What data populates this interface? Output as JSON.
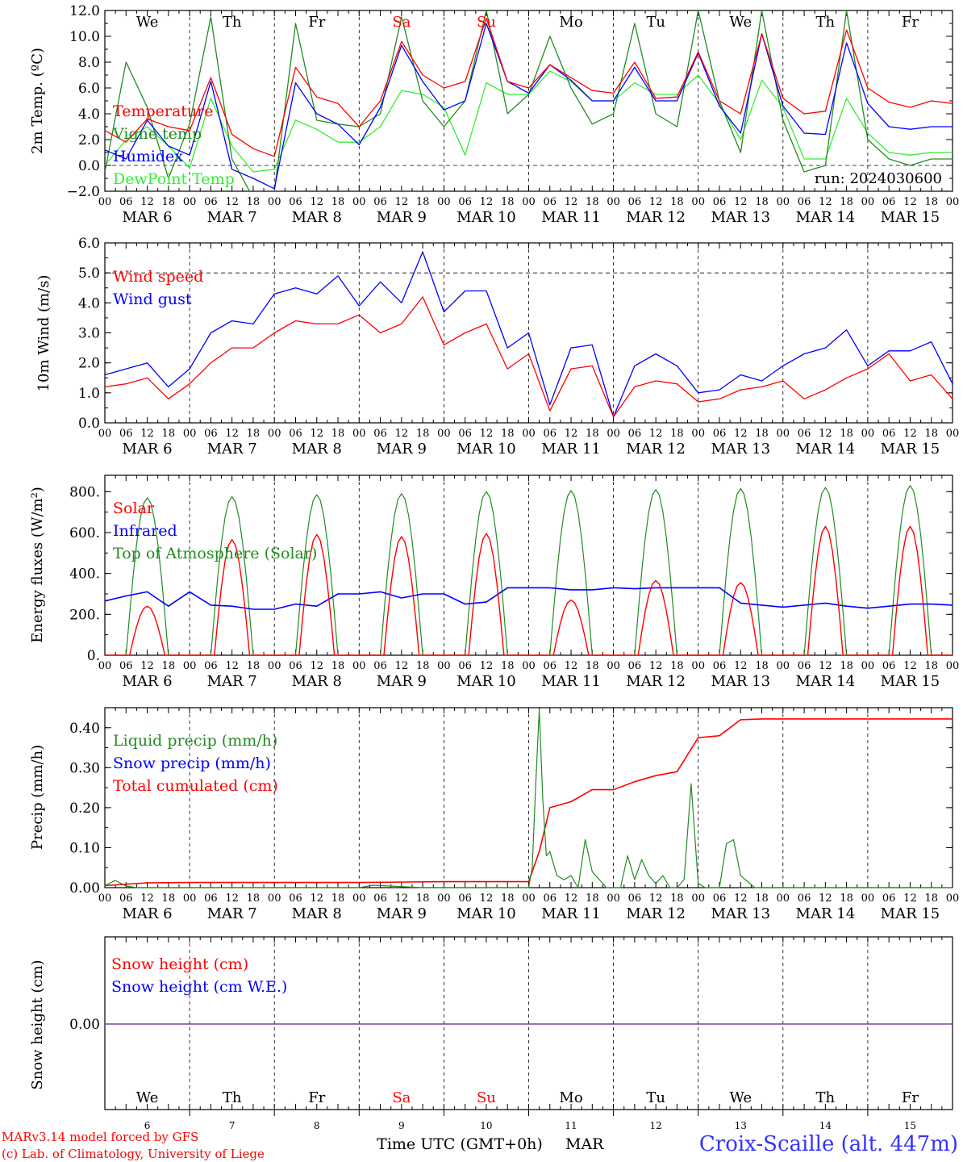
{
  "chart_data": [
    {
      "type": "line",
      "ylabel": "2m Temp. (ºC)",
      "ylim": [
        -2.0,
        12.0
      ],
      "yticks": [
        "−2.0",
        "0.0",
        "2.0",
        "4.0",
        "6.0",
        "8.0",
        "10.0",
        "12.0"
      ],
      "ytick_values": [
        -2,
        0,
        2,
        4,
        6,
        8,
        10,
        12
      ],
      "ref_line": 0,
      "day_labels": [
        "We",
        "Th",
        "Fr",
        "Sa",
        "Su",
        "Mo",
        "Tu",
        "We",
        "Th",
        "Fr"
      ],
      "run_label": "run: 2024030600",
      "x": [
        0,
        6,
        12,
        18,
        24,
        30,
        36,
        42,
        48,
        54,
        60,
        66,
        72,
        78,
        84,
        90,
        96,
        102,
        108,
        114,
        120,
        126,
        132,
        138,
        144,
        150,
        156,
        162,
        168,
        174,
        180,
        186,
        192,
        198,
        204,
        210,
        216,
        222,
        228,
        234,
        240
      ],
      "series": [
        {
          "name": "Temperature",
          "color": "#ff0000",
          "values": [
            2.7,
            1.8,
            3.6,
            3.0,
            2.7,
            6.8,
            2.4,
            1.3,
            0.7,
            7.6,
            5.3,
            4.8,
            3.0,
            5.0,
            9.6,
            7.0,
            6.0,
            6.5,
            11.4,
            6.5,
            6.0,
            7.8,
            6.8,
            5.8,
            5.6,
            8.0,
            5.2,
            5.3,
            8.8,
            5.0,
            4.0,
            10.2,
            5.2,
            4.0,
            4.2,
            10.5,
            6.0,
            4.9,
            4.5,
            5.0,
            4.8
          ]
        },
        {
          "name": "Vigne temp",
          "color": "#228b22",
          "values": [
            -0.5,
            8.0,
            4.5,
            -1.0,
            3.2,
            11.5,
            0.5,
            -2.5,
            -2.0,
            11.0,
            3.5,
            3.2,
            3.0,
            4.0,
            11.5,
            5.0,
            3.0,
            5.0,
            12.0,
            4.0,
            5.5,
            10.0,
            6.0,
            3.2,
            4.0,
            11.0,
            4.0,
            3.0,
            12.0,
            5.0,
            1.0,
            12.0,
            3.5,
            -0.5,
            0.0,
            12.0,
            2.0,
            0.5,
            0.0,
            0.5,
            0.5
          ]
        },
        {
          "name": "Humidex",
          "color": "#0000ff",
          "values": [
            1.2,
            0.5,
            3.5,
            1.5,
            0.8,
            6.5,
            -0.3,
            -1.0,
            -1.8,
            6.4,
            4.0,
            3.2,
            1.6,
            4.5,
            9.3,
            6.5,
            4.3,
            5.0,
            11.0,
            6.5,
            5.6,
            7.8,
            6.6,
            5.0,
            5.0,
            7.6,
            5.0,
            5.0,
            8.7,
            4.6,
            2.5,
            10.2,
            4.6,
            2.5,
            2.4,
            9.5,
            4.8,
            3.0,
            2.8,
            3.0,
            3.0
          ]
        },
        {
          "name": "DewPoint Temp",
          "color": "#33ee33",
          "values": [
            0.0,
            2.0,
            3.0,
            1.5,
            -0.2,
            5.2,
            1.5,
            -0.5,
            -0.3,
            3.5,
            2.8,
            1.8,
            1.8,
            3.0,
            5.8,
            5.5,
            4.5,
            0.8,
            6.4,
            5.5,
            5.5,
            7.3,
            6.5,
            5.0,
            5.0,
            6.4,
            5.5,
            5.5,
            7.0,
            4.8,
            2.0,
            6.6,
            4.5,
            0.5,
            0.5,
            5.2,
            2.5,
            1.0,
            0.8,
            1.0,
            1.0
          ]
        }
      ]
    },
    {
      "type": "line",
      "ylabel": "10m Wind (m/s)",
      "ylim": [
        0.0,
        6.0
      ],
      "yticks": [
        "0.0",
        "1.0",
        "2.0",
        "3.0",
        "4.0",
        "5.0",
        "6.0"
      ],
      "ytick_values": [
        0,
        1,
        2,
        3,
        4,
        5,
        6
      ],
      "ref_line": 5.0,
      "x": [
        0,
        6,
        12,
        18,
        24,
        30,
        36,
        42,
        48,
        54,
        60,
        66,
        72,
        78,
        84,
        90,
        96,
        102,
        108,
        114,
        120,
        126,
        132,
        138,
        144,
        150,
        156,
        162,
        168,
        174,
        180,
        186,
        192,
        198,
        204,
        210,
        216,
        222,
        228,
        234,
        240
      ],
      "series": [
        {
          "name": "Wind speed",
          "color": "#ff0000",
          "values": [
            1.2,
            1.3,
            1.5,
            0.8,
            1.3,
            2.0,
            2.5,
            2.5,
            3.0,
            3.4,
            3.3,
            3.3,
            3.6,
            3.0,
            3.3,
            4.2,
            2.6,
            3.0,
            3.3,
            1.8,
            2.3,
            0.4,
            1.8,
            1.9,
            0.2,
            1.2,
            1.4,
            1.3,
            0.7,
            0.8,
            1.1,
            1.2,
            1.4,
            0.8,
            1.1,
            1.5,
            1.8,
            2.3,
            1.4,
            1.6,
            0.8
          ]
        },
        {
          "name": "Wind gust",
          "color": "#0000ff",
          "values": [
            1.6,
            1.8,
            2.0,
            1.2,
            1.8,
            3.0,
            3.4,
            3.3,
            4.3,
            4.5,
            4.3,
            4.9,
            3.9,
            4.7,
            4.0,
            5.7,
            3.7,
            4.4,
            4.4,
            2.5,
            3.0,
            0.6,
            2.5,
            2.6,
            0.2,
            1.9,
            2.3,
            1.9,
            1.0,
            1.1,
            1.6,
            1.4,
            1.9,
            2.3,
            2.5,
            3.1,
            1.9,
            2.4,
            2.4,
            2.7,
            1.3
          ]
        }
      ]
    },
    {
      "type": "line",
      "ylabel": "Energy fluxes (W/m²)",
      "ylim": [
        0,
        880
      ],
      "yticks": [
        "0.",
        "200.",
        "400.",
        "600.",
        "800."
      ],
      "ytick_values": [
        0,
        200,
        400,
        600,
        800
      ],
      "x": [
        0,
        6,
        12,
        18,
        24,
        30,
        36,
        42,
        48,
        54,
        60,
        66,
        72,
        78,
        84,
        90,
        96,
        102,
        108,
        114,
        120,
        126,
        132,
        138,
        144,
        150,
        156,
        162,
        168,
        174,
        180,
        186,
        192,
        198,
        204,
        210,
        216,
        222,
        228,
        234,
        240
      ],
      "series": [
        {
          "name": "Solar",
          "color": "#ff0000",
          "values": [
            0,
            0,
            240,
            0,
            0,
            0,
            565,
            0,
            0,
            0,
            590,
            0,
            0,
            0,
            580,
            0,
            0,
            0,
            595,
            0,
            0,
            0,
            270,
            0,
            0,
            0,
            365,
            0,
            0,
            0,
            355,
            0,
            0,
            0,
            630,
            0,
            0,
            0,
            630,
            0,
            0
          ]
        },
        {
          "name": "Infrared",
          "color": "#0000ff",
          "values": [
            265,
            290,
            310,
            240,
            310,
            245,
            240,
            225,
            225,
            250,
            240,
            300,
            300,
            310,
            280,
            300,
            300,
            250,
            260,
            330,
            330,
            330,
            320,
            320,
            330,
            325,
            330,
            330,
            330,
            330,
            255,
            245,
            235,
            245,
            255,
            240,
            230,
            240,
            250,
            250,
            245
          ]
        },
        {
          "name": "Top of Atmosphere (Solar)",
          "color": "#228b22",
          "values": [
            0,
            0,
            770,
            0,
            0,
            0,
            775,
            0,
            0,
            0,
            785,
            0,
            0,
            0,
            790,
            0,
            0,
            0,
            800,
            0,
            0,
            0,
            805,
            0,
            0,
            0,
            810,
            0,
            0,
            0,
            815,
            0,
            0,
            0,
            820,
            0,
            0,
            0,
            830,
            0,
            0
          ]
        }
      ]
    },
    {
      "type": "line",
      "ylabel": "Precip (mm/h)",
      "ylim": [
        0.0,
        0.45
      ],
      "yticks": [
        "0.00",
        "0.10",
        "0.20",
        "0.30",
        "0.40"
      ],
      "ytick_values": [
        0,
        0.1,
        0.2,
        0.3,
        0.4
      ],
      "x_liquid": [
        0,
        3,
        6,
        9,
        12,
        48,
        72,
        76,
        90,
        120,
        121,
        122,
        123,
        124,
        125,
        126,
        128,
        130,
        132,
        134,
        136,
        138,
        140,
        142,
        144,
        146,
        148,
        150,
        152,
        154,
        156,
        158,
        160,
        162,
        164,
        166,
        168,
        170,
        172,
        174,
        176,
        178,
        180,
        184,
        192,
        240
      ],
      "liquid": [
        0.005,
        0.018,
        0.004,
        0.0,
        0.0,
        0.0,
        0.0,
        0.006,
        0.0,
        0.0,
        0.05,
        0.26,
        0.445,
        0.22,
        0.08,
        0.09,
        0.03,
        0.02,
        0.03,
        0.0,
        0.12,
        0.04,
        0.02,
        0.0,
        0.0,
        0.0,
        0.08,
        0.02,
        0.07,
        0.03,
        0.01,
        0.03,
        0.0,
        0.0,
        0.02,
        0.26,
        0.01,
        0.0,
        0.0,
        0.0,
        0.11,
        0.12,
        0.03,
        0.0,
        0.0,
        0.0
      ],
      "x_cum": [
        0,
        12,
        24,
        48,
        72,
        96,
        120,
        123,
        126,
        132,
        138,
        144,
        150,
        156,
        162,
        168,
        174,
        180,
        186,
        192,
        240
      ],
      "cumulated": [
        0.005,
        0.012,
        0.013,
        0.013,
        0.013,
        0.015,
        0.015,
        0.09,
        0.2,
        0.215,
        0.245,
        0.245,
        0.265,
        0.28,
        0.29,
        0.375,
        0.38,
        0.42,
        0.422,
        0.422,
        0.422
      ],
      "series": [
        {
          "name": "Liquid precip (mm/h)",
          "color": "#228b22"
        },
        {
          "name": "Snow precip (mm/h)",
          "color": "#0000ff"
        },
        {
          "name": "Total cumulated (cm)",
          "color": "#ff0000"
        }
      ]
    },
    {
      "type": "line",
      "ylabel": "Snow height (cm)",
      "yticks": [
        "0.00"
      ],
      "series": [
        {
          "name": "Snow height (cm)",
          "color": "#ff0000",
          "values": [
            0,
            0
          ]
        },
        {
          "name": "Snow height (cm W.E.)",
          "color": "#0000ff",
          "values": [
            0,
            0
          ]
        }
      ],
      "day_labels": [
        "We",
        "Th",
        "Fr",
        "Sa",
        "Su",
        "Mo",
        "Tu",
        "We",
        "Th",
        "Fr"
      ],
      "day_numbers": [
        "6",
        "7",
        "8",
        "9",
        "10",
        "11",
        "12",
        "13",
        "14",
        "15"
      ],
      "xlabel": "Time UTC (GMT+0h)",
      "month": "MAR"
    }
  ],
  "x_axis": {
    "hour_ticks": [
      "00",
      "06",
      "12",
      "18"
    ],
    "end_tick": "00",
    "dates": [
      "MAR  6",
      "MAR  7",
      "MAR  8",
      "MAR  9",
      "MAR 10",
      "MAR 11",
      "MAR 12",
      "MAR 13",
      "MAR 14",
      "MAR 15"
    ]
  },
  "weekend_color": "#ff0000",
  "weekend_days": [
    3,
    4
  ],
  "footer": {
    "credit_line1": "MARv3.14 model forced by GFS",
    "credit_line2": "(c) Lab. of Climatology, University of Liege",
    "station": "Croix-Scaille (alt. 447m)",
    "station_color": "#3333ff"
  }
}
